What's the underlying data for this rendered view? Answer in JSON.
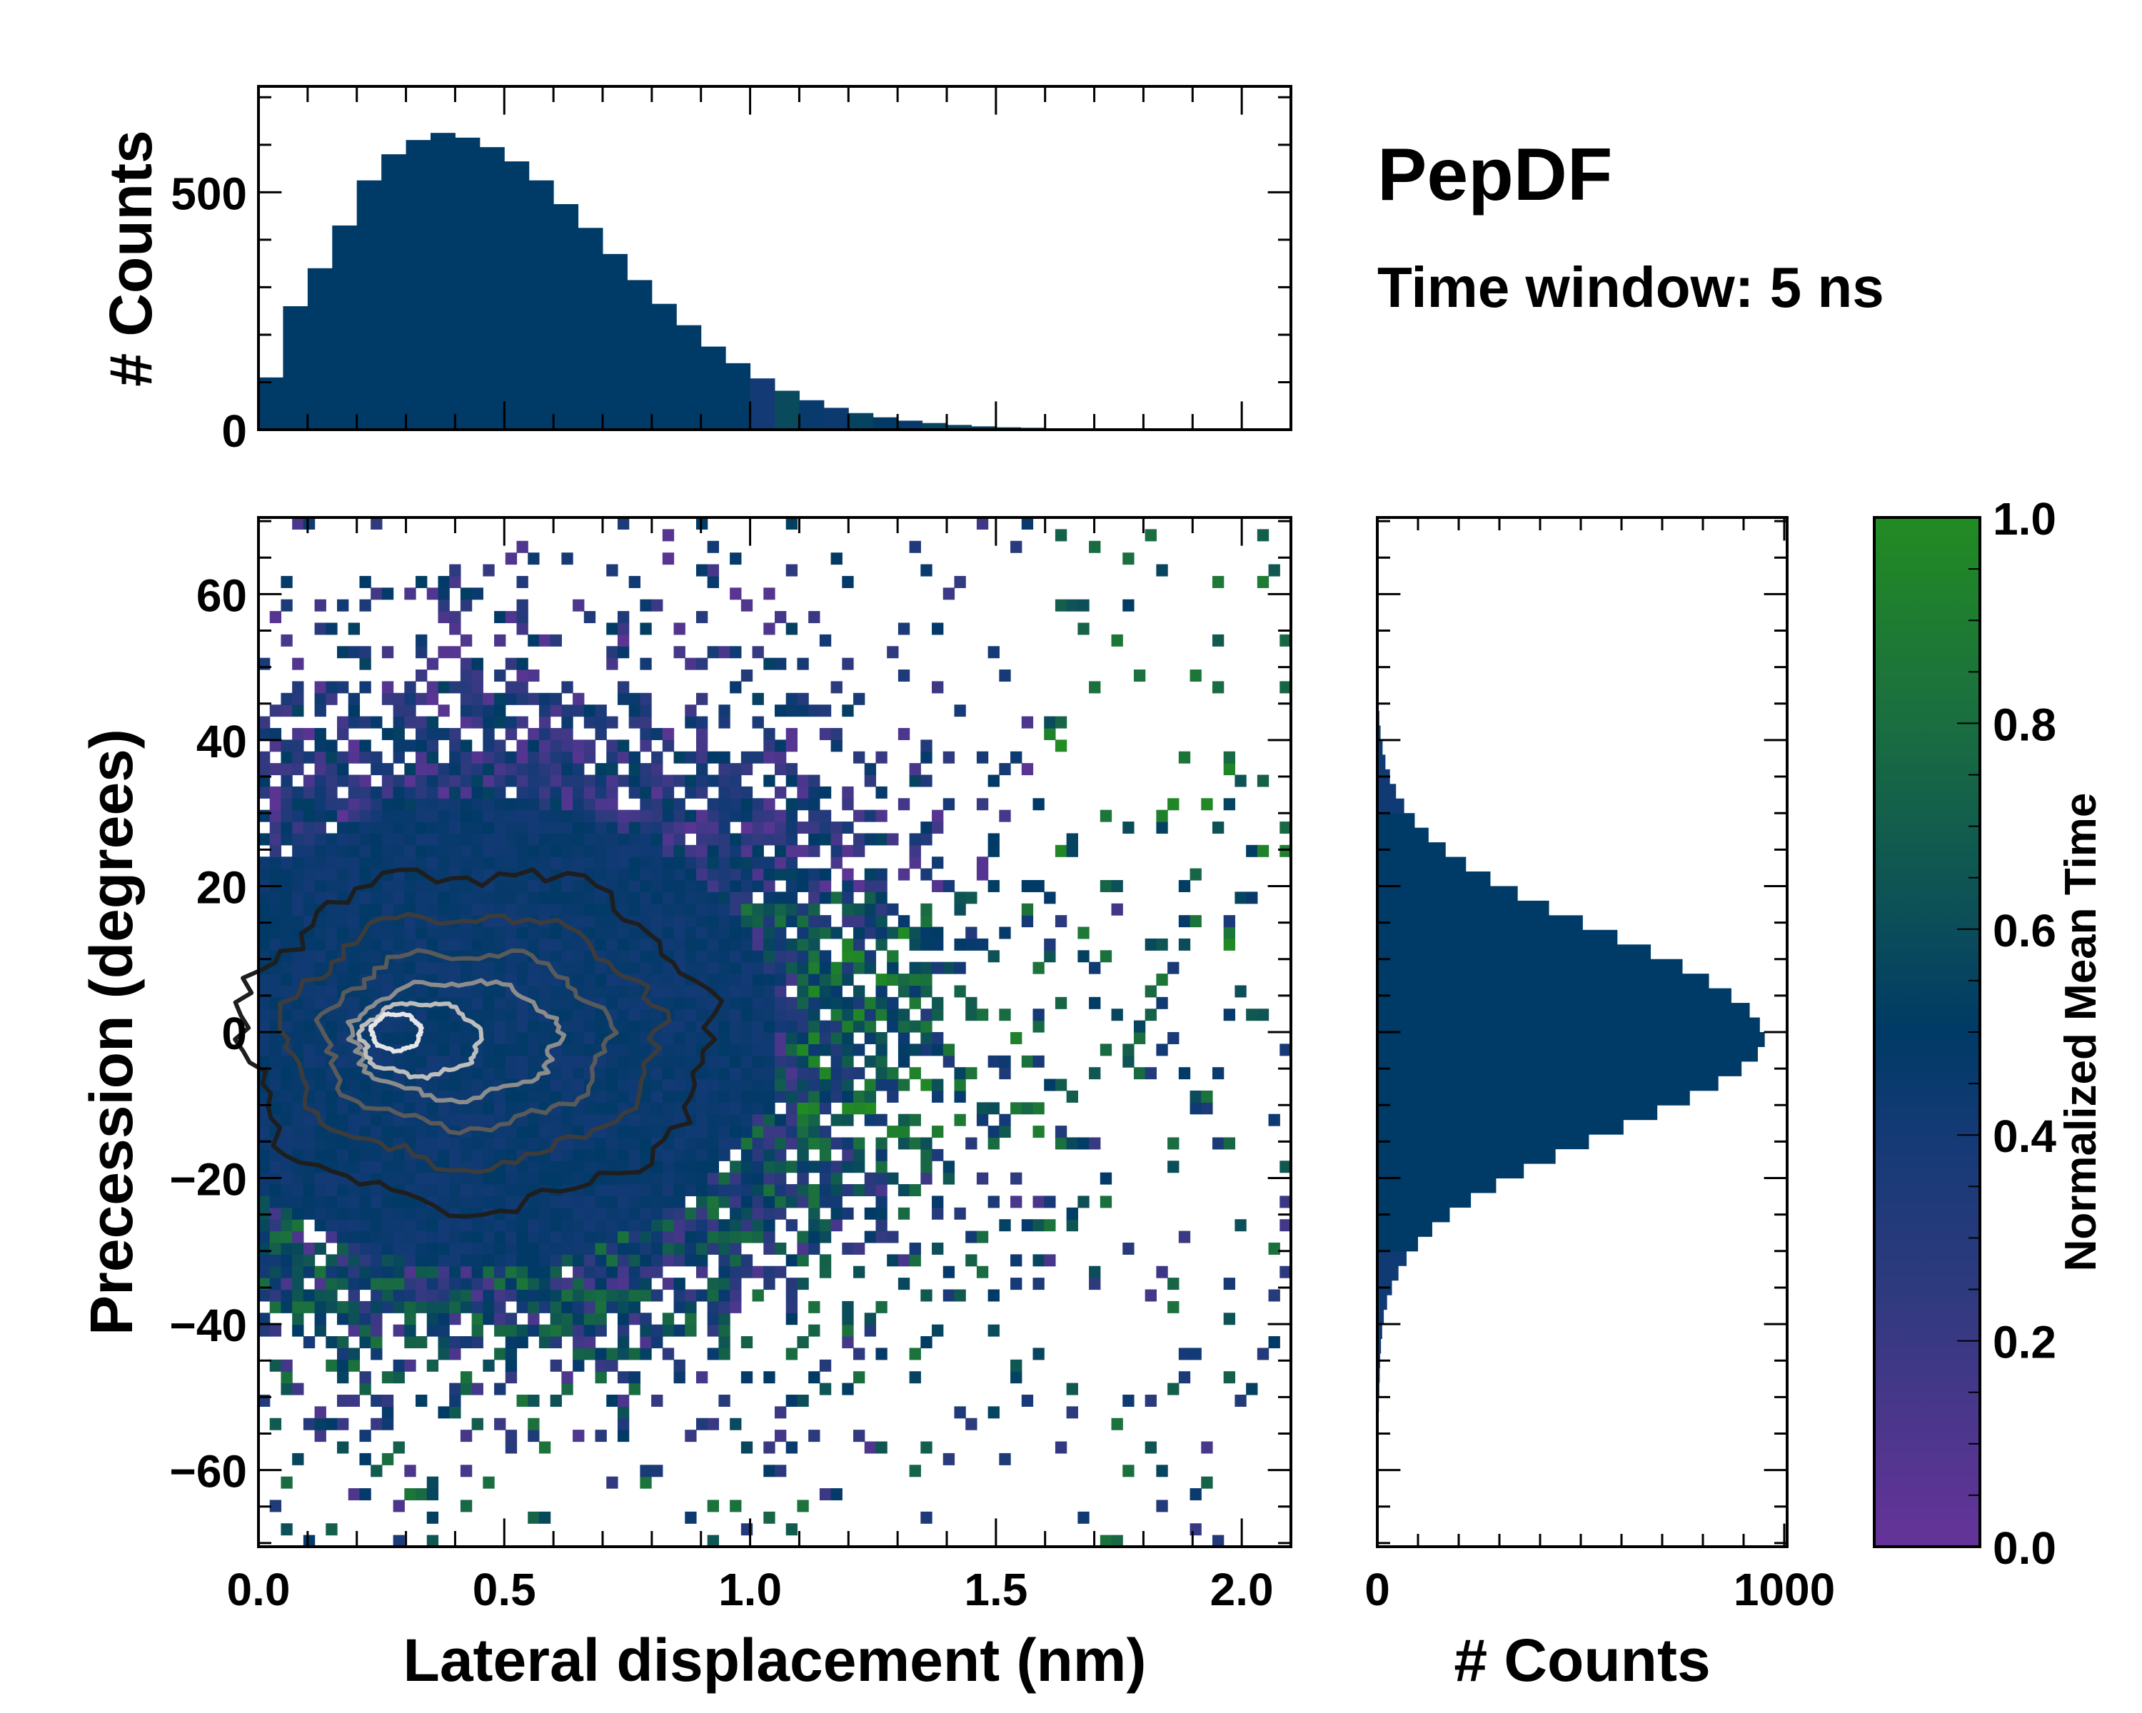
{
  "title": "PepDF",
  "subtitle": "Time window: 5 ns",
  "colormap": {
    "stops": [
      [
        0.0,
        "#663399"
      ],
      [
        0.25,
        "#2e3a7e"
      ],
      [
        0.4,
        "#143a76"
      ],
      [
        0.5,
        "#003a66"
      ],
      [
        0.6,
        "#0b4d5a"
      ],
      [
        0.8,
        "#1a6e40"
      ],
      [
        1.0,
        "#228b22"
      ]
    ]
  },
  "chart_data": [
    {
      "name": "top-histogram",
      "type": "bar",
      "xlabel": "",
      "ylabel": "# Counts",
      "xlim": [
        0,
        2.1
      ],
      "ylim": [
        0,
        723
      ],
      "yticks": [
        0,
        500
      ],
      "ytick_labels": [
        "0",
        "500"
      ],
      "bin_width": 0.05,
      "bin_starts": [
        0,
        0.05,
        0.1,
        0.15,
        0.2,
        0.25,
        0.3,
        0.35,
        0.4,
        0.45,
        0.5,
        0.55,
        0.6,
        0.65,
        0.7,
        0.75,
        0.8,
        0.85,
        0.9,
        0.95,
        1.0,
        1.05,
        1.1,
        1.15,
        1.2,
        1.25,
        1.3,
        1.35,
        1.4,
        1.45,
        1.5,
        1.55,
        1.6,
        1.65,
        1.7,
        1.75,
        1.8,
        1.85,
        1.9,
        1.95,
        2.0,
        2.05
      ],
      "values": [
        110,
        260,
        340,
        430,
        525,
        580,
        610,
        625,
        615,
        595,
        565,
        525,
        475,
        425,
        370,
        315,
        265,
        220,
        175,
        140,
        108,
        82,
        62,
        46,
        35,
        26,
        19,
        14,
        10,
        7,
        5,
        4,
        3,
        2,
        2,
        1,
        1,
        1,
        1,
        0,
        0,
        0
      ]
    },
    {
      "name": "main-heatmap",
      "type": "heatmap",
      "xlabel": "Lateral displacement (nm)",
      "ylabel": "Precession (degrees)",
      "xlim": [
        0,
        2.1
      ],
      "ylim": [
        -70.5,
        70.5
      ],
      "xticks": [
        0.0,
        0.5,
        1.0,
        1.5,
        2.0
      ],
      "xtick_labels": [
        "0.0",
        "0.5",
        "1.0",
        "1.5",
        "2.0"
      ],
      "yticks": [
        -60,
        -40,
        -20,
        0,
        20,
        40,
        60
      ],
      "ytick_labels": [
        "−60",
        "−40",
        "−20",
        "0",
        "20",
        "40",
        "60"
      ],
      "density_peak": {
        "x": 0.42,
        "y": -2
      },
      "contour_levels": [
        {
          "cx": 0.44,
          "cy": -1,
          "rx": 0.47,
          "ry": 23,
          "color": "#1e1e1e"
        },
        {
          "cx": 0.43,
          "cy": -1,
          "rx": 0.38,
          "ry": 17,
          "color": "#3c3c3c"
        },
        {
          "cx": 0.42,
          "cy": -1,
          "rx": 0.29,
          "ry": 12,
          "color": "#5a5a5a"
        },
        {
          "cx": 0.4,
          "cy": -1,
          "rx": 0.21,
          "ry": 8,
          "color": "#8c8c8c"
        },
        {
          "cx": 0.33,
          "cy": -1,
          "rx": 0.12,
          "ry": 5,
          "color": "#bdbdbd"
        },
        {
          "cx": 0.28,
          "cy": 0,
          "rx": 0.05,
          "ry": 2.5,
          "color": "#e6e6e6"
        }
      ]
    },
    {
      "name": "right-histogram",
      "type": "bar",
      "orientation": "horizontal",
      "xlabel": "# Counts",
      "xlim": [
        0,
        1007
      ],
      "ylim": [
        -70.5,
        70.5
      ],
      "xticks": [
        0,
        1000
      ],
      "xtick_labels": [
        "0",
        "1000"
      ],
      "bin_width": 2,
      "bin_centers": [
        -55,
        -53,
        -51,
        -49,
        -47,
        -45,
        -43,
        -41,
        -39,
        -37,
        -35,
        -33,
        -31,
        -29,
        -27,
        -25,
        -23,
        -21,
        -19,
        -17,
        -15,
        -13,
        -11,
        -9,
        -7,
        -5,
        -3,
        -1,
        1,
        3,
        5,
        7,
        9,
        11,
        13,
        15,
        17,
        19,
        21,
        23,
        25,
        27,
        29,
        31,
        33,
        35,
        37,
        39,
        41,
        43,
        45,
        47,
        49,
        51,
        53,
        55
      ],
      "values": [
        2,
        3,
        4,
        5,
        6,
        7,
        9,
        12,
        16,
        24,
        36,
        52,
        72,
        100,
        135,
        178,
        230,
        292,
        360,
        438,
        520,
        605,
        688,
        768,
        838,
        895,
        935,
        952,
        940,
        915,
        870,
        815,
        750,
        672,
        590,
        505,
        422,
        345,
        278,
        218,
        168,
        126,
        92,
        66,
        46,
        31,
        20,
        13,
        8,
        5,
        3,
        2,
        1,
        1,
        0,
        0
      ]
    },
    {
      "name": "colorbar",
      "type": "colorbar",
      "label": "Normalized Mean Time",
      "ylim": [
        0,
        1
      ],
      "yticks": [
        0.0,
        0.2,
        0.4,
        0.6,
        0.8,
        1.0
      ],
      "ytick_labels": [
        "0.0",
        "0.2",
        "0.4",
        "0.6",
        "0.8",
        "1.0"
      ]
    }
  ]
}
